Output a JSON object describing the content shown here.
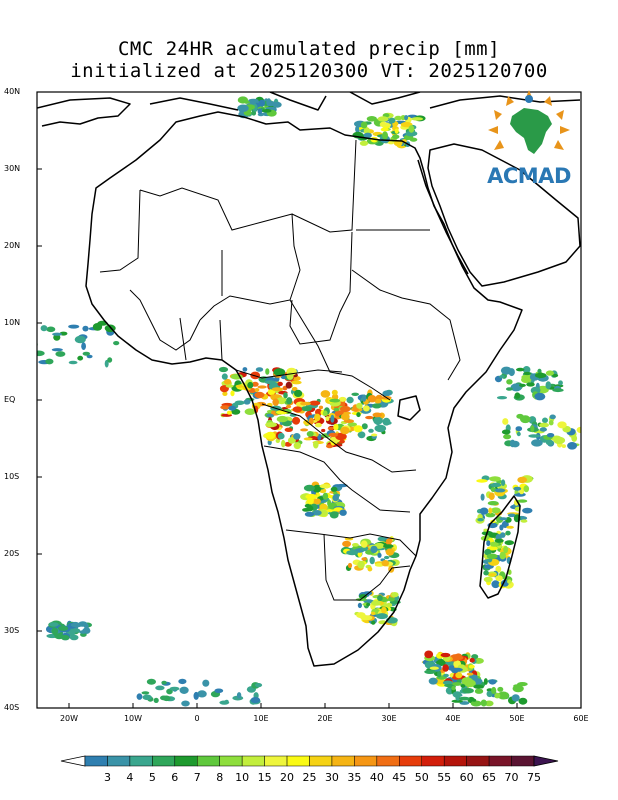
{
  "title": {
    "line1": "CMC 24HR accumulated precip [mm]",
    "line2": "initialized at 2025120300 VT: 2025120700"
  },
  "map": {
    "extent_lon": [
      -25,
      60
    ],
    "extent_lat": [
      -40,
      40
    ],
    "lat_ticks": [
      {
        "value": 40,
        "label": "40N"
      },
      {
        "value": 30,
        "label": "30N"
      },
      {
        "value": 20,
        "label": "20N"
      },
      {
        "value": 10,
        "label": "10N"
      },
      {
        "value": 0,
        "label": "EQ"
      },
      {
        "value": -10,
        "label": "10S"
      },
      {
        "value": -20,
        "label": "20S"
      },
      {
        "value": -30,
        "label": "30S"
      },
      {
        "value": -40,
        "label": "40S"
      }
    ],
    "lon_ticks": [
      {
        "value": -20,
        "label": "20W"
      },
      {
        "value": -10,
        "label": "10W"
      },
      {
        "value": 0,
        "label": "0"
      },
      {
        "value": 10,
        "label": "10E"
      },
      {
        "value": 20,
        "label": "20E"
      },
      {
        "value": 30,
        "label": "30E"
      },
      {
        "value": 40,
        "label": "40E"
      },
      {
        "value": 50,
        "label": "50E"
      },
      {
        "value": 60,
        "label": "60E"
      }
    ]
  },
  "colorbar": {
    "labels": [
      "3",
      "4",
      "5",
      "6",
      "7",
      "8",
      "10",
      "15",
      "20",
      "25",
      "30",
      "35",
      "40",
      "45",
      "50",
      "55",
      "60",
      "65",
      "70",
      "75"
    ],
    "colors": [
      "#2f7fb0",
      "#3a93a8",
      "#3aa68e",
      "#2fa65a",
      "#1e9a2e",
      "#5fc83c",
      "#8ede3c",
      "#c2ee3c",
      "#eef53c",
      "#fafa14",
      "#f5d214",
      "#f5b414",
      "#f59614",
      "#f06e14",
      "#e63c0a",
      "#d21e0a",
      "#b4140a",
      "#961414",
      "#781428",
      "#5a1432",
      "#3c1450"
    ]
  },
  "logo": {
    "text": "ACMAD"
  }
}
